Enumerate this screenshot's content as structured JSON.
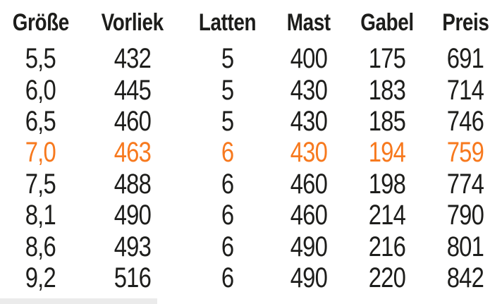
{
  "table": {
    "columns": [
      {
        "key": "groesse",
        "label": "Größe"
      },
      {
        "key": "vorliek",
        "label": "Vorliek"
      },
      {
        "key": "latten",
        "label": "Latten"
      },
      {
        "key": "mast",
        "label": "Mast"
      },
      {
        "key": "gabel",
        "label": "Gabel"
      },
      {
        "key": "preis",
        "label": "Preis"
      }
    ],
    "rows": [
      {
        "groesse": "5,5",
        "vorliek": "432",
        "latten": "5",
        "mast": "400",
        "gabel": "175",
        "preis": "691",
        "highlighted": false
      },
      {
        "groesse": "6,0",
        "vorliek": "445",
        "latten": "5",
        "mast": "430",
        "gabel": "183",
        "preis": "714",
        "highlighted": false
      },
      {
        "groesse": "6,5",
        "vorliek": "460",
        "latten": "5",
        "mast": "430",
        "gabel": "185",
        "preis": "746",
        "highlighted": false
      },
      {
        "groesse": "7,0",
        "vorliek": "463",
        "latten": "6",
        "mast": "430",
        "gabel": "194",
        "preis": "759",
        "highlighted": true
      },
      {
        "groesse": "7,5",
        "vorliek": "488",
        "latten": "6",
        "mast": "460",
        "gabel": "198",
        "preis": "774",
        "highlighted": false
      },
      {
        "groesse": "8,1",
        "vorliek": "490",
        "latten": "6",
        "mast": "460",
        "gabel": "214",
        "preis": "790",
        "highlighted": false
      },
      {
        "groesse": "8,6",
        "vorliek": "493",
        "latten": "6",
        "mast": "490",
        "gabel": "216",
        "preis": "801",
        "highlighted": false
      },
      {
        "groesse": "9,2",
        "vorliek": "516",
        "latten": "6",
        "mast": "490",
        "gabel": "220",
        "preis": "842",
        "highlighted": false
      }
    ],
    "highlighted_row_groesse": "7,0"
  },
  "chart_data": {
    "type": "table",
    "title": "",
    "columns": [
      "Größe",
      "Vorliek",
      "Latten",
      "Mast",
      "Gabel",
      "Preis"
    ],
    "rows": [
      [
        "5,5",
        432,
        5,
        400,
        175,
        691
      ],
      [
        "6,0",
        445,
        5,
        430,
        183,
        714
      ],
      [
        "6,5",
        460,
        5,
        430,
        185,
        746
      ],
      [
        "7,0",
        463,
        6,
        430,
        194,
        759
      ],
      [
        "7,5",
        488,
        6,
        460,
        198,
        774
      ],
      [
        "8,1",
        490,
        6,
        460,
        214,
        790
      ],
      [
        "8,6",
        493,
        6,
        490,
        216,
        801
      ],
      [
        "9,2",
        516,
        6,
        490,
        220,
        842
      ]
    ],
    "highlighted_row_index": 3
  },
  "colors": {
    "text": "#1d1d1b",
    "highlight": "#f7791e",
    "background": "#ffffff",
    "bottom_bar": "#ebebeb"
  }
}
